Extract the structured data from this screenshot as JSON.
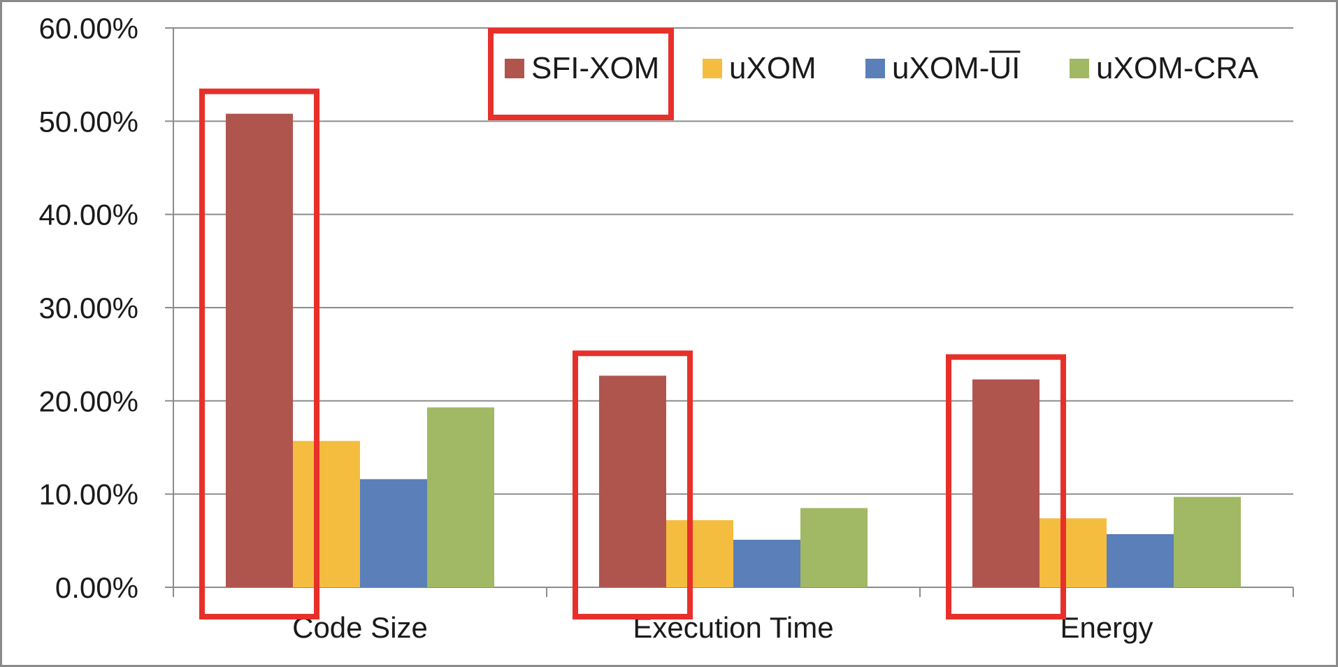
{
  "chart_data": {
    "type": "bar",
    "categories": [
      "Code Size",
      "Execution Time",
      "Energy"
    ],
    "series": [
      {
        "name": "SFI-XOM",
        "color": "#b0554e",
        "values": [
          0.508,
          0.227,
          0.223
        ]
      },
      {
        "name": "uXOM",
        "color": "#f5bd3f",
        "values": [
          0.157,
          0.072,
          0.074
        ]
      },
      {
        "name": "uXOM-UI",
        "color": "#5a7fb9",
        "values": [
          0.116,
          0.051,
          0.057
        ]
      },
      {
        "name": "uXOM-CRA",
        "color": "#a1b964",
        "values": [
          0.193,
          0.085,
          0.097
        ]
      }
    ],
    "ylim": [
      0,
      0.6
    ],
    "yticks": [
      "0.00%",
      "10.00%",
      "20.00%",
      "30.00%",
      "40.00%",
      "50.00%",
      "60.00%"
    ],
    "ytick_values": [
      0,
      0.1,
      0.2,
      0.3,
      0.4,
      0.5,
      0.6
    ],
    "grid": true,
    "legend_position": "top-right",
    "title": "",
    "xlabel": "",
    "ylabel": ""
  },
  "highlights": {
    "color": "#e8302a",
    "legend_entry": "SFI-XOM",
    "series_highlighted": "SFI-XOM"
  }
}
